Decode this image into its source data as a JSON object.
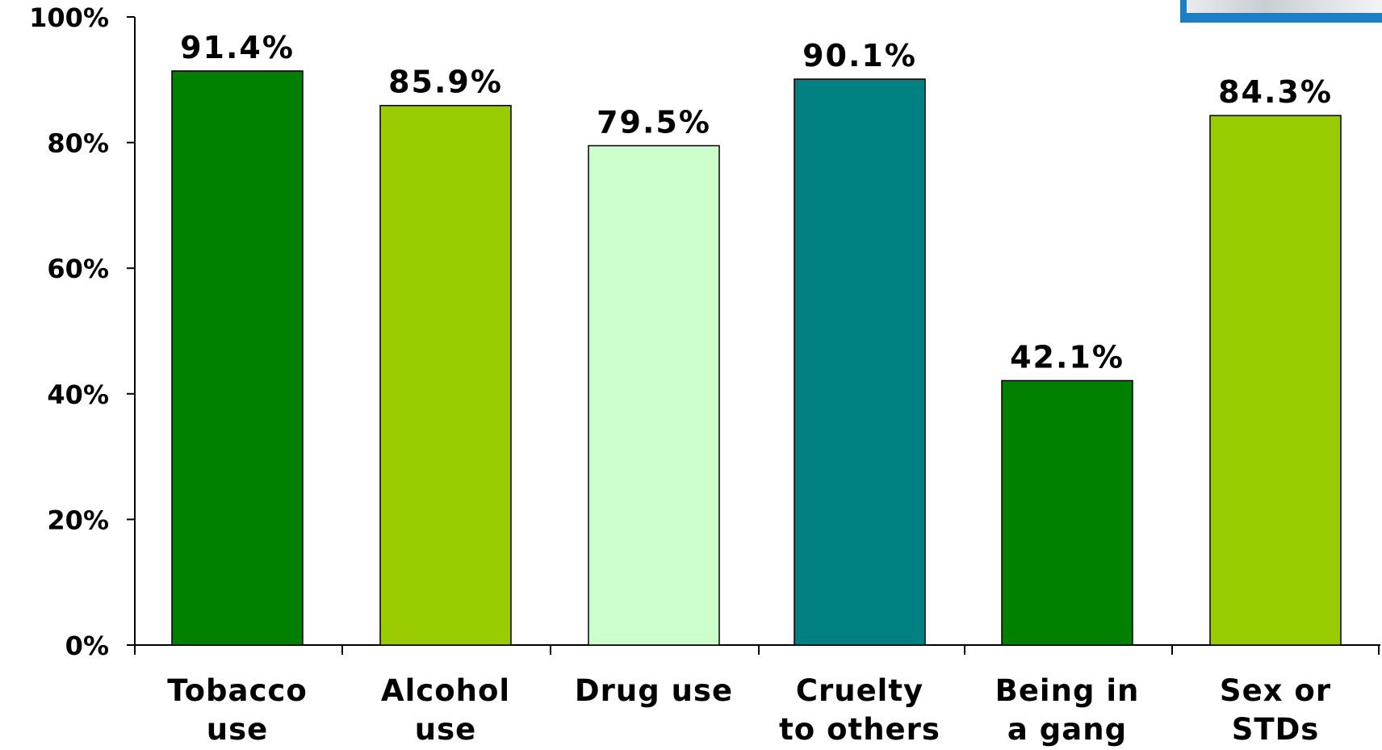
{
  "chart_data": {
    "type": "bar",
    "categories": [
      [
        "Tobacco",
        "use"
      ],
      [
        "Alcohol",
        "use"
      ],
      [
        "Drug use"
      ],
      [
        "Cruelty",
        "to others"
      ],
      [
        "Being in",
        "a gang"
      ],
      [
        "Sex or",
        "STDs"
      ]
    ],
    "values": [
      91.4,
      85.9,
      79.5,
      90.1,
      42.1,
      84.3
    ],
    "data_labels": [
      "91.4%",
      "85.9%",
      "79.5%",
      "90.1%",
      "42.1%",
      "84.3%"
    ],
    "bar_colors": [
      "#007f00",
      "#99cc00",
      "#ccffcc",
      "#008080",
      "#007f00",
      "#99cc00"
    ],
    "ylim": [
      0,
      100
    ],
    "yticks": [
      0,
      20,
      40,
      60,
      80,
      100
    ],
    "ytick_labels": [
      "0%",
      "20%",
      "40%",
      "60%",
      "80%",
      "100%"
    ],
    "grid": false,
    "legend": "none"
  },
  "colors": {
    "axis": "#000000",
    "photo_frame": "#1a7fc4"
  }
}
